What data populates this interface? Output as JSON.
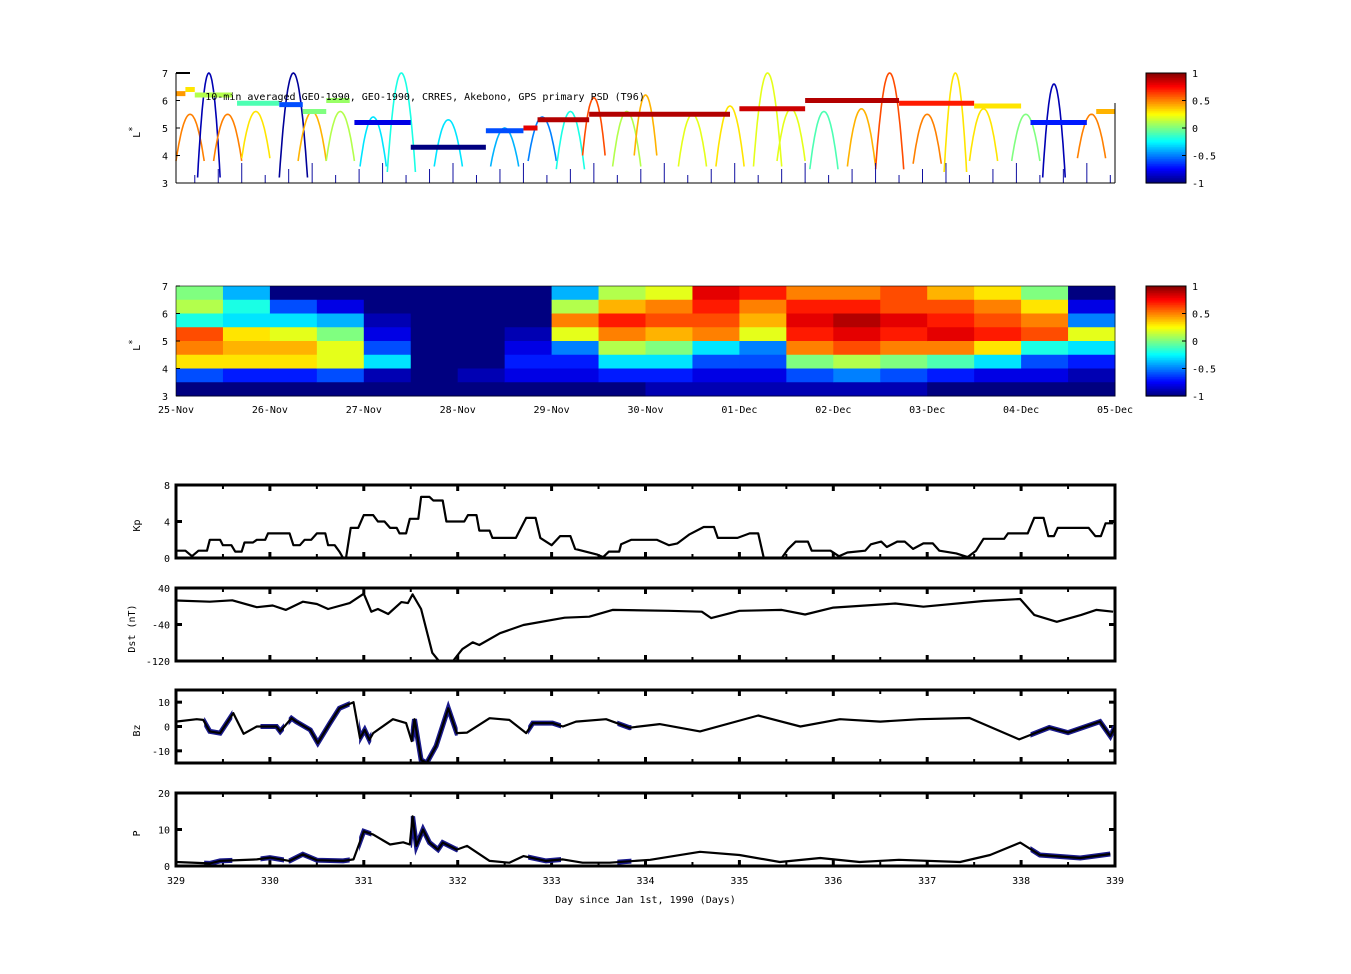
{
  "chart_data": [
    {
      "type": "scatter",
      "title": "10-min averaged GEO-1990, GEO-1990, CRRES, Akebono, GPS  primary PSD (T96)",
      "ylabel": "L*",
      "xlim": [
        329,
        339
      ],
      "ylim": [
        3,
        7
      ],
      "yticks": [
        "3",
        "4",
        "5",
        "6",
        "7"
      ],
      "colorbar": {
        "range": [
          -1,
          1
        ],
        "ticks": [
          "1",
          "0.5",
          "0",
          "-0.5",
          "-1"
        ],
        "colormap": "jet"
      },
      "geo_track": [
        [
          329.0,
          329.1,
          6.25,
          0.45
        ],
        [
          329.1,
          329.2,
          6.4,
          0.3
        ],
        [
          329.2,
          329.6,
          6.2,
          0.1
        ],
        [
          329.65,
          330.1,
          5.9,
          -0.1
        ],
        [
          330.1,
          330.35,
          5.85,
          -0.6
        ],
        [
          330.35,
          330.6,
          5.6,
          0.0
        ],
        [
          330.6,
          330.85,
          6.0,
          0.05
        ],
        [
          330.9,
          331.5,
          5.2,
          -0.8
        ],
        [
          331.5,
          332.3,
          4.3,
          -1.0
        ],
        [
          332.3,
          332.7,
          4.9,
          -0.6
        ],
        [
          332.7,
          332.85,
          5.0,
          0.8
        ],
        [
          332.85,
          333.4,
          5.3,
          0.9
        ],
        [
          333.4,
          334.9,
          5.5,
          0.9
        ],
        [
          335.0,
          335.7,
          5.7,
          0.85
        ],
        [
          335.7,
          336.7,
          6.0,
          0.9
        ],
        [
          336.7,
          337.5,
          5.9,
          0.7
        ],
        [
          337.5,
          338.0,
          5.8,
          0.3
        ],
        [
          338.1,
          338.7,
          5.2,
          -0.7
        ],
        [
          338.8,
          339.0,
          5.6,
          0.4
        ]
      ],
      "arcs": [
        [
          329.15,
          0.15,
          3.8,
          5.5,
          0.5
        ],
        [
          329.35,
          0.12,
          3.2,
          7.0,
          -0.9
        ],
        [
          329.55,
          0.15,
          3.8,
          5.5,
          0.5
        ],
        [
          329.85,
          0.15,
          3.9,
          5.6,
          0.3
        ],
        [
          330.25,
          0.15,
          3.2,
          7.0,
          -0.95
        ],
        [
          330.45,
          0.15,
          3.8,
          5.6,
          0.4
        ],
        [
          330.75,
          0.15,
          3.8,
          5.6,
          0.1
        ],
        [
          331.4,
          0.15,
          3.4,
          7.0,
          -0.2
        ],
        [
          331.1,
          0.14,
          3.6,
          5.4,
          -0.3
        ],
        [
          331.9,
          0.15,
          3.6,
          5.3,
          -0.3
        ],
        [
          332.5,
          0.15,
          3.6,
          5.0,
          -0.4
        ],
        [
          332.9,
          0.15,
          3.8,
          5.4,
          -0.5
        ],
        [
          333.2,
          0.15,
          3.5,
          5.6,
          -0.2
        ],
        [
          333.45,
          0.12,
          4.0,
          6.1,
          0.6
        ],
        [
          333.8,
          0.15,
          3.6,
          5.6,
          0.1
        ],
        [
          334.0,
          0.12,
          4.0,
          6.2,
          0.4
        ],
        [
          334.5,
          0.15,
          3.6,
          5.5,
          0.2
        ],
        [
          334.9,
          0.15,
          3.6,
          5.8,
          0.3
        ],
        [
          335.3,
          0.15,
          3.6,
          7.0,
          0.2
        ],
        [
          335.55,
          0.15,
          3.8,
          5.7,
          0.2
        ],
        [
          335.9,
          0.15,
          3.5,
          5.6,
          -0.1
        ],
        [
          336.3,
          0.15,
          3.6,
          5.7,
          0.4
        ],
        [
          336.6,
          0.15,
          3.5,
          7.0,
          0.6
        ],
        [
          337.0,
          0.15,
          3.7,
          5.5,
          0.5
        ],
        [
          337.3,
          0.12,
          3.4,
          7.0,
          0.3
        ],
        [
          337.6,
          0.15,
          3.8,
          5.7,
          0.3
        ],
        [
          338.05,
          0.15,
          3.8,
          5.5,
          0.0
        ],
        [
          338.35,
          0.12,
          3.2,
          6.6,
          -0.9
        ],
        [
          338.75,
          0.15,
          3.9,
          5.5,
          0.5
        ]
      ]
    },
    {
      "type": "heatmap",
      "ylabel": "L*",
      "xlim": [
        329,
        339
      ],
      "ylim": [
        3,
        7
      ],
      "yticks": [
        "3",
        "4",
        "5",
        "6",
        "7"
      ],
      "xtick_labels": [
        "25-Nov",
        "26-Nov",
        "27-Nov",
        "28-Nov",
        "29-Nov",
        "30-Nov",
        "01-Dec",
        "02-Dec",
        "03-Dec",
        "04-Dec",
        "05-Dec"
      ],
      "colorbar": {
        "range": [
          -1,
          1
        ],
        "ticks": [
          "1",
          "0.5",
          "0",
          "-0.5",
          "-1"
        ],
        "colormap": "jet"
      },
      "row_L_edges_top_to_bottom": [
        7,
        6.5,
        6,
        5.5,
        5,
        4.5,
        4,
        3.5,
        3
      ],
      "column_day_step": 0.5,
      "values": [
        [
          0.0,
          0.1,
          -0.2,
          0.6,
          0.5,
          0.3,
          -0.6,
          -1
        ],
        [
          -0.4,
          -0.2,
          -0.3,
          0.3,
          0.4,
          0.3,
          -0.7,
          -1
        ],
        [
          -1,
          -0.6,
          -0.3,
          0.2,
          0.4,
          0.3,
          -0.7,
          -1
        ],
        [
          -1,
          -0.8,
          -0.4,
          0.0,
          0.2,
          0.2,
          -0.6,
          -1
        ],
        [
          -1,
          -1,
          -0.9,
          -0.8,
          -0.6,
          -0.3,
          -0.9,
          -1
        ],
        [
          -1,
          -1,
          -1,
          -1,
          -1,
          -1,
          -1,
          -1
        ],
        [
          -1,
          -1,
          -1,
          -1,
          -1,
          -1,
          -0.9,
          -1
        ],
        [
          -1,
          -1,
          -1,
          -0.9,
          -0.8,
          -0.7,
          -0.8,
          -1
        ],
        [
          -0.4,
          0.1,
          0.5,
          0.2,
          -0.5,
          -0.7,
          -0.8,
          -1
        ],
        [
          0.1,
          0.4,
          0.7,
          0.5,
          0.1,
          -0.3,
          -0.7,
          -1
        ],
        [
          0.2,
          0.5,
          0.6,
          0.4,
          0.0,
          -0.3,
          -0.7,
          -0.9
        ],
        [
          0.8,
          0.7,
          0.6,
          0.5,
          -0.3,
          -0.6,
          -0.8,
          -0.9
        ],
        [
          0.7,
          0.5,
          0.4,
          0.2,
          -0.5,
          -0.6,
          -0.8,
          -0.9
        ],
        [
          0.5,
          0.7,
          0.8,
          0.7,
          0.5,
          0.0,
          -0.6,
          -0.9
        ],
        [
          0.5,
          0.7,
          0.9,
          0.8,
          0.6,
          0.1,
          -0.5,
          -0.9
        ],
        [
          0.6,
          0.6,
          0.8,
          0.7,
          0.5,
          0.0,
          -0.6,
          -0.9
        ],
        [
          0.4,
          0.6,
          0.7,
          0.8,
          0.5,
          -0.1,
          -0.7,
          -1
        ],
        [
          0.3,
          0.5,
          0.6,
          0.7,
          0.3,
          -0.3,
          -0.8,
          -1
        ],
        [
          0.0,
          0.3,
          0.5,
          0.6,
          -0.2,
          -0.6,
          -0.8,
          -1
        ],
        [
          -1,
          -0.8,
          -0.5,
          0.2,
          -0.3,
          -0.7,
          -0.9,
          -1
        ]
      ]
    },
    {
      "type": "line",
      "ylabel": "Kp",
      "xlim": [
        329,
        339
      ],
      "ylim": [
        0,
        8
      ],
      "yticks": [
        "0",
        "4",
        "8"
      ],
      "x": [
        329.0,
        329.1,
        329.17,
        329.24,
        329.33,
        329.36,
        329.47,
        329.5,
        329.59,
        329.63,
        329.7,
        329.73,
        329.82,
        329.86,
        329.95,
        329.98,
        330.21,
        330.25,
        330.32,
        330.37,
        330.44,
        330.5,
        330.59,
        330.62,
        330.69,
        330.74,
        330.78,
        330.81,
        330.86,
        330.94,
        331.0,
        331.1,
        331.15,
        331.22,
        331.28,
        331.35,
        331.38,
        331.45,
        331.49,
        331.58,
        331.61,
        331.7,
        331.74,
        331.84,
        331.88,
        332.07,
        332.11,
        332.2,
        332.23,
        332.34,
        332.37,
        332.62,
        332.73,
        332.83,
        332.88,
        333.0,
        333.09,
        333.2,
        333.25,
        333.48,
        333.55,
        333.61,
        333.72,
        333.74,
        333.85,
        334.12,
        334.25,
        334.34,
        334.47,
        334.62,
        334.73,
        334.77,
        334.98,
        335.11,
        335.2,
        335.26,
        335.45,
        335.52,
        335.6,
        335.73,
        335.77,
        335.97,
        336.06,
        336.15,
        336.34,
        336.4,
        336.51,
        336.57,
        336.68,
        336.76,
        336.85,
        336.96,
        337.06,
        337.13,
        337.31,
        337.43,
        337.52,
        337.6,
        337.82,
        337.86,
        338.07,
        338.14,
        338.24,
        338.29,
        338.35,
        338.39,
        338.72,
        338.79,
        338.85,
        338.9,
        338.98
      ],
      "values": [
        0.8,
        0.8,
        0.2,
        0.8,
        0.8,
        2,
        2,
        1.4,
        1.4,
        0.7,
        0.7,
        1.7,
        1.7,
        2,
        2,
        2.7,
        2.7,
        1.4,
        1.4,
        2,
        2,
        2.7,
        2.7,
        1.4,
        1.4,
        0.7,
        0,
        0,
        3.3,
        3.3,
        4.7,
        4.7,
        4,
        4,
        3.3,
        3.3,
        2.7,
        2.7,
        4.3,
        4.3,
        6.7,
        6.7,
        6.3,
        6.3,
        4,
        4,
        4.7,
        4.7,
        3,
        3,
        2.2,
        2.2,
        4.4,
        4.4,
        2.2,
        1.4,
        2.4,
        2.4,
        1,
        0.4,
        0.1,
        0.7,
        0.7,
        1.5,
        2,
        2,
        1.4,
        1.6,
        2.6,
        3.4,
        3.4,
        2.2,
        2.2,
        2.7,
        2.7,
        0,
        0,
        1,
        1.8,
        1.8,
        0.8,
        0.8,
        0.2,
        0.6,
        0.8,
        1.5,
        1.8,
        1.2,
        1.8,
        1.8,
        1.0,
        1.6,
        1.6,
        0.8,
        0.5,
        0.1,
        0.8,
        2.1,
        2.1,
        2.7,
        2.7,
        4.4,
        4.4,
        2.4,
        2.4,
        3.3,
        3.3,
        2.4,
        2.4,
        3.8,
        3.8
      ]
    },
    {
      "type": "line",
      "ylabel": "Dst (nT)",
      "xlim": [
        329,
        339
      ],
      "ylim": [
        -120,
        40
      ],
      "yticks": [
        "-120",
        "-40",
        "40"
      ],
      "x": [
        329.0,
        329.36,
        329.6,
        329.86,
        330.03,
        330.17,
        330.35,
        330.5,
        330.62,
        330.85,
        331.0,
        331.08,
        331.15,
        331.26,
        331.4,
        331.47,
        331.52,
        331.61,
        331.73,
        331.8,
        331.95,
        332.05,
        332.16,
        332.23,
        332.45,
        332.7,
        333.14,
        333.4,
        333.65,
        334.25,
        334.6,
        334.7,
        335.0,
        335.45,
        335.7,
        336.0,
        336.66,
        336.96,
        337.6,
        337.99,
        338.14,
        338.38,
        338.64,
        338.8,
        338.98
      ],
      "values": [
        12.7,
        10,
        13,
        -2,
        1.7,
        -8,
        10,
        5,
        -6,
        7,
        27.5,
        -12,
        -6,
        -17,
        9,
        7,
        26,
        -6,
        -102,
        -120,
        -120,
        -94,
        -79,
        -85,
        -59,
        -41,
        -25,
        -23,
        -8,
        -10,
        -12,
        -26,
        -10,
        -8,
        -18,
        -3,
        6,
        -1,
        11.5,
        16,
        -19,
        -34,
        -19,
        -8,
        -12
      ]
    },
    {
      "type": "line",
      "ylabel": "Bz",
      "xlim": [
        329,
        339
      ],
      "ylim": [
        -15,
        15
      ],
      "yticks": [
        "-10",
        "0",
        "10"
      ],
      "x": [
        329.0,
        329.22,
        329.29,
        329.36,
        329.47,
        329.61,
        329.72,
        329.86,
        330.07,
        330.11,
        330.23,
        330.28,
        330.43,
        330.51,
        330.64,
        330.74,
        330.89,
        330.96,
        331.01,
        331.06,
        331.1,
        331.31,
        331.45,
        331.51,
        331.54,
        331.61,
        331.67,
        331.77,
        331.9,
        331.99,
        332.1,
        332.34,
        332.55,
        332.73,
        332.8,
        333.01,
        333.12,
        333.26,
        333.58,
        333.83,
        334.15,
        334.58,
        335.2,
        335.65,
        336.07,
        336.5,
        336.92,
        337.45,
        337.98,
        338.3,
        338.5,
        338.84,
        338.95,
        339.0
      ],
      "values": [
        2,
        3,
        2.7,
        -2,
        -2.7,
        5.5,
        -3,
        0,
        0,
        -2,
        3.4,
        2,
        -1.4,
        -6.8,
        1.4,
        7.5,
        10,
        -4.8,
        -1.4,
        -5.5,
        -2.7,
        3,
        1.4,
        -6,
        3,
        -13.7,
        -15,
        -8,
        7.5,
        -2.7,
        -2.5,
        3.4,
        2.7,
        -2.7,
        1.4,
        1.4,
        0,
        2,
        3,
        -0.5,
        1,
        -2,
        4.5,
        0,
        3,
        2,
        3,
        3.5,
        -5.3,
        -0.4,
        -2.5,
        2,
        -4,
        0
      ]
    },
    {
      "type": "line",
      "ylabel": "P",
      "xlabel": "Day since Jan 1st, 1990 (Days)",
      "xlim": [
        329,
        339
      ],
      "ylim": [
        0,
        20
      ],
      "yticks": [
        "0",
        "10",
        "20"
      ],
      "xticks": [
        "329",
        "330",
        "331",
        "332",
        "333",
        "334",
        "335",
        "336",
        "337",
        "338",
        "339"
      ],
      "x": [
        329.0,
        329.36,
        329.47,
        329.86,
        330.0,
        330.21,
        330.35,
        330.5,
        330.78,
        330.89,
        331.0,
        331.1,
        331.28,
        331.42,
        331.49,
        331.52,
        331.56,
        331.63,
        331.7,
        331.79,
        331.84,
        331.99,
        332.1,
        332.34,
        332.55,
        332.7,
        332.94,
        333.12,
        333.33,
        333.62,
        334.05,
        334.58,
        335.0,
        335.43,
        335.86,
        336.28,
        336.7,
        337.35,
        337.67,
        337.99,
        338.2,
        338.63,
        338.95
      ],
      "values": [
        1.1,
        0.7,
        1.4,
        1.8,
        2.3,
        1.4,
        3.2,
        1.6,
        1.4,
        1.8,
        9.5,
        8.6,
        5.9,
        6.5,
        5.9,
        13.6,
        5.5,
        10,
        6.4,
        4.5,
        6.4,
        4.5,
        5.5,
        1.4,
        0.9,
        2.7,
        1.4,
        1.8,
        0.9,
        0.9,
        1.7,
        3.9,
        3,
        1.1,
        2.2,
        1.1,
        1.7,
        1.1,
        3,
        6.4,
        3,
        2.2,
        3.3
      ]
    },
    {
      "highlight_ranges": [
        [
          329.3,
          329.6
        ],
        [
          329.9,
          330.15
        ],
        [
          330.2,
          330.85
        ],
        [
          330.95,
          331.08
        ],
        [
          331.5,
          332.0
        ],
        [
          332.75,
          333.1
        ],
        [
          333.7,
          333.85
        ],
        [
          338.1,
          339.0
        ]
      ],
      "highlight_color": "#1a1a8c",
      "line_color": "#000000"
    }
  ]
}
